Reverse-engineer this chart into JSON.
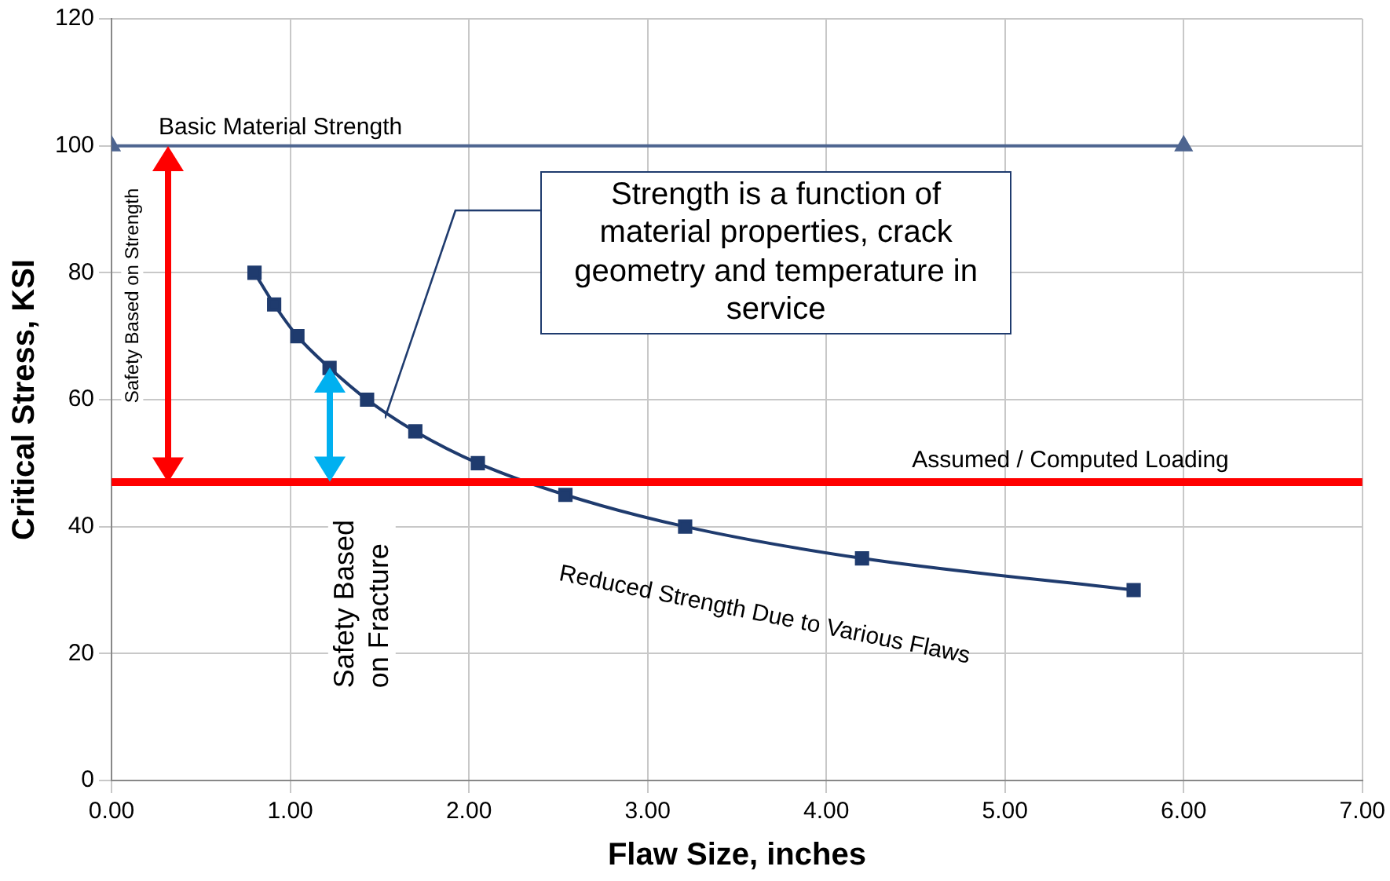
{
  "chart_data": {
    "type": "line",
    "xlabel": "Flaw Size, inches",
    "ylabel": "Critical Stress, KSI",
    "xlim": [
      0,
      7
    ],
    "xticks": [
      {
        "value": 0,
        "label": "0.00"
      },
      {
        "value": 1,
        "label": "1.00"
      },
      {
        "value": 2,
        "label": "2.00"
      },
      {
        "value": 3,
        "label": "3.00"
      },
      {
        "value": 4,
        "label": "4.00"
      },
      {
        "value": 5,
        "label": "5.00"
      },
      {
        "value": 6,
        "label": "6.00"
      },
      {
        "value": 7,
        "label": "7.00"
      }
    ],
    "ylim": [
      0,
      120
    ],
    "yticks": [
      0,
      20,
      40,
      60,
      80,
      100,
      120
    ],
    "grid": true,
    "legend": false,
    "series": [
      {
        "name": "Basic Material Strength",
        "color": "#4e6590",
        "marker": "triangle",
        "x": [
          0,
          6
        ],
        "values": [
          100,
          100
        ]
      },
      {
        "name": "Reduced Strength Due to Various Flaws",
        "color": "#1f3b6e",
        "marker": "square",
        "x": [
          0.8,
          0.91,
          1.04,
          1.22,
          1.43,
          1.7,
          2.05,
          2.54,
          3.21,
          4.2,
          5.72
        ],
        "values": [
          80,
          75,
          70,
          65,
          60,
          55,
          50,
          45,
          40,
          35,
          30
        ]
      }
    ],
    "ref_lines": [
      {
        "axis": "y",
        "value": 47,
        "label": "Assumed / Computed Loading",
        "color": "#ff0000"
      }
    ],
    "annotations": [
      {
        "text": "Strength is a function of material properties, crack geometry and temperature in service",
        "x": 1.53,
        "y": 57
      },
      "Safety Based on Strength",
      "Safety Based on Fracture"
    ]
  }
}
